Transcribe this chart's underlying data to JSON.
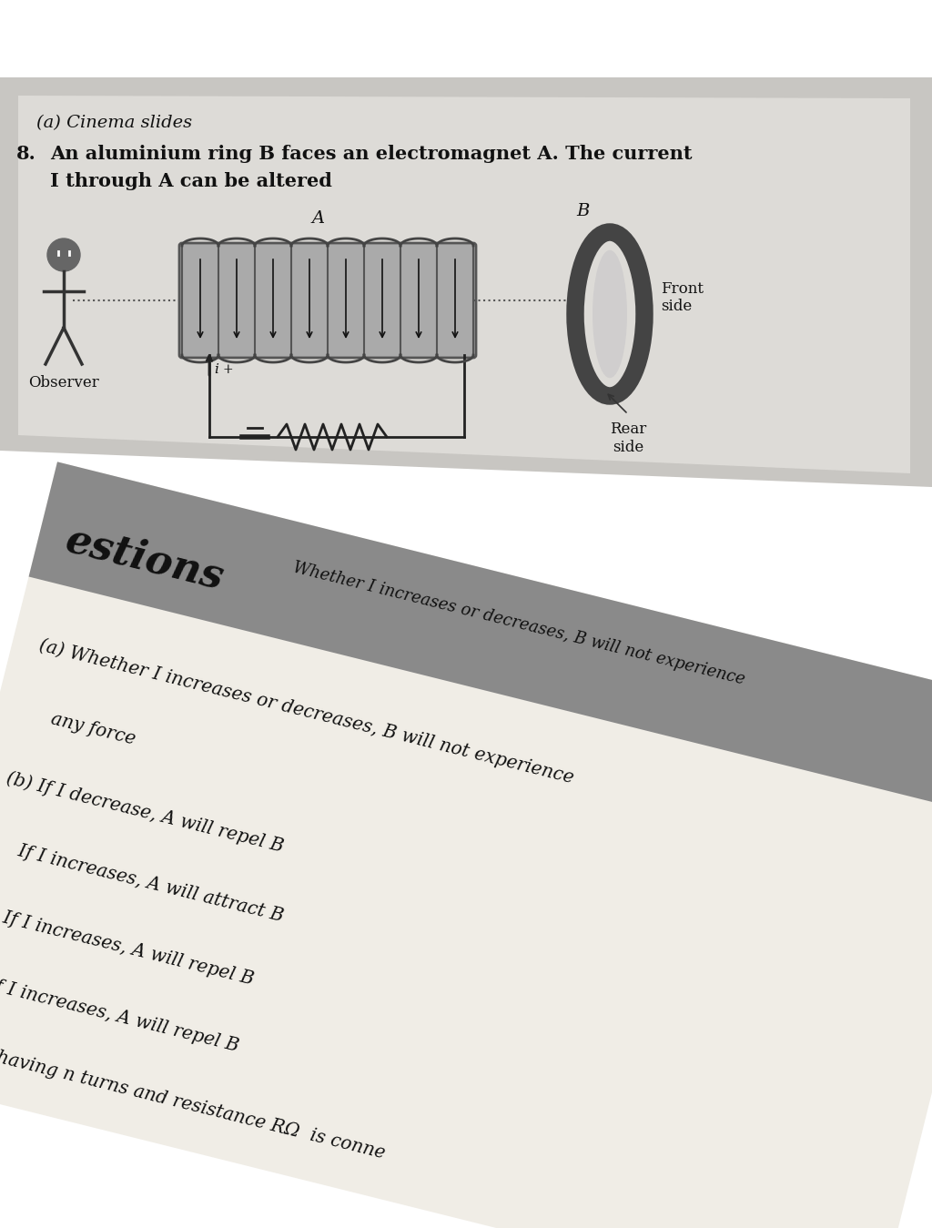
{
  "bg_white": "#ffffff",
  "card_bg": "#d0cece",
  "paper_bg": "#e8e6e2",
  "bottom_paper": "#f2efe9",
  "bottom_gray_band": "#888888",
  "text_dark": "#111111",
  "text_mid": "#333333",
  "coil_fill": "#999999",
  "coil_lines": "#444444",
  "ring_color": "#555555",
  "circuit_color": "#222222",
  "q_prefix": "(a) Cinema slides",
  "q_num": "8.",
  "q_line1": "An aluminium ring B faces an electromagnet A. The current",
  "q_line2": "I through A can be altered",
  "label_A": "A",
  "label_B": "B",
  "label_observer": "Observer",
  "label_front": "Front\nside",
  "label_rear": "Rear\nside",
  "header_word": "estions",
  "diag_text": "Whether I increases or decreases, B will not experience",
  "ans_a1": "(a) Whether I increases or decreases, B will not experience",
  "ans_a2": "     any force",
  "ans_b1": "(b) If I decrease, A will repel B",
  "ans_b2": "     If I increases, A will attract B",
  "ans_c": "(c) If I increases, A will repel B",
  "ans_d": "(d) If I increases, A will repel B",
  "ans_e": "     oil having n turns and resistance RΩ  is conne"
}
